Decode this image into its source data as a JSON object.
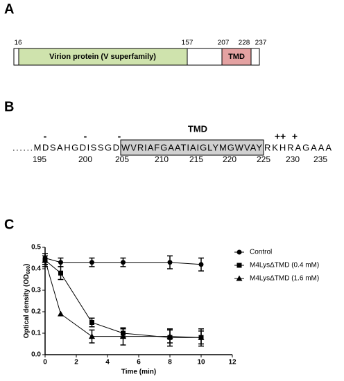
{
  "panel_a": {
    "letter": "A",
    "residues": [
      16,
      157,
      207,
      228,
      237
    ],
    "domains": [
      "Virion protein (V superfamily)",
      "TMD"
    ]
  },
  "panel_b": {
    "letter": "B",
    "tmd_label": "TMD",
    "prefix": "......MDSAHGDISSGD",
    "tmd": "WVRIAFGAATIAIGLYMGWVAY",
    "suffix": "RKHRAGAAA",
    "charges": [
      "-",
      "-",
      "-",
      "++",
      "+"
    ],
    "numbers": [
      195,
      200,
      205,
      210,
      215,
      220,
      225,
      230,
      235
    ]
  },
  "panel_c": {
    "letter": "C"
  },
  "chart_data": {
    "type": "line",
    "xlabel": "Time (min)",
    "ylabel": [
      "Optical density (OD",
      "600",
      ")"
    ],
    "x": [
      0,
      1,
      3,
      5,
      8,
      10
    ],
    "xlim": [
      0,
      12
    ],
    "xticks": [
      0,
      2,
      4,
      6,
      8,
      10,
      12
    ],
    "ylim": [
      0,
      0.5
    ],
    "yticks": [
      {
        "value": 0,
        "label": "0.0"
      },
      0.1,
      0.2,
      0.3,
      0.4,
      0.5
    ],
    "series": [
      {
        "name": "Control",
        "color": "#000000",
        "marker": "circle",
        "values": [
          0.45,
          0.43,
          0.43,
          0.43,
          0.43,
          0.42
        ],
        "errors": [
          0.02,
          0.02,
          0.02,
          0.02,
          0.03,
          0.03
        ]
      },
      {
        "name": "M4LysΔTMD (0.4 mM)",
        "color": "#000000",
        "marker": "square",
        "values": [
          0.44,
          0.38,
          0.15,
          0.1,
          0.08,
          0.08
        ],
        "errors": [
          0.02,
          0.03,
          0.02,
          0.02,
          0.04,
          0.04
        ]
      },
      {
        "name": "M4LysΔTMD (1.6 mM)",
        "color": "#000000",
        "marker": "triangle",
        "values": [
          0.44,
          0.19,
          0.085,
          0.085,
          0.085,
          0.08
        ],
        "errors": [
          0.03,
          0,
          0.03,
          0.04,
          0.03,
          0.03
        ]
      }
    ],
    "legend": "right"
  }
}
